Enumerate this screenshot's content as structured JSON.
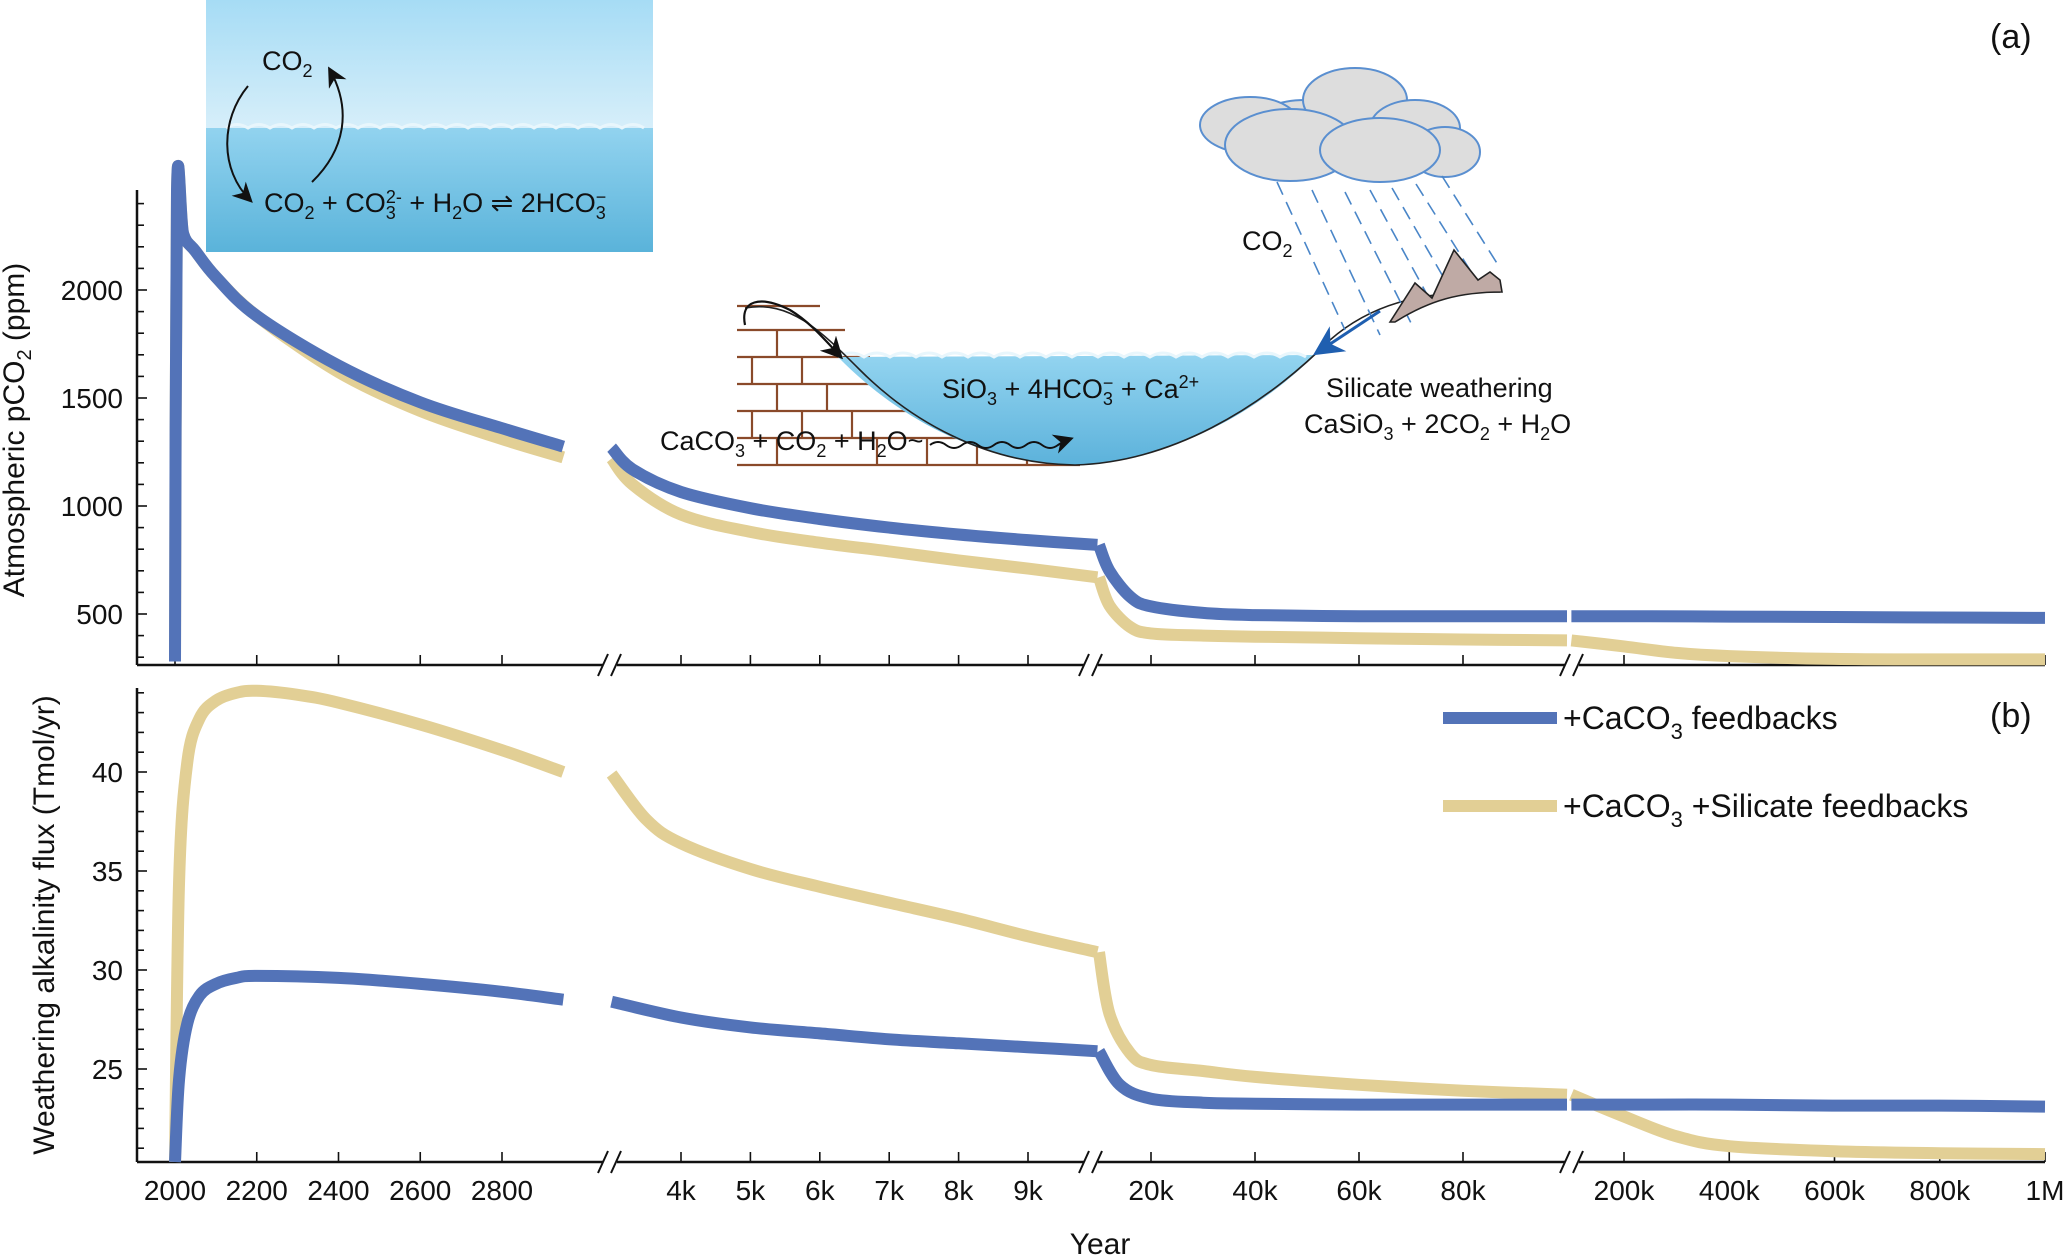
{
  "chart_data": [
    {
      "panel": "(a)",
      "type": "line",
      "ylabel": "Atmospheric pCO2 (ppm)",
      "ylabel_main": "Atmospheric pCO",
      "ylabel_sub": "2",
      "ylabel_tail": " (ppm)",
      "ylim": [
        264,
        2460
      ],
      "yticks": [
        500,
        1000,
        1500,
        2000
      ],
      "yminor_step": 100,
      "xlabel": "Year",
      "series": [
        {
          "name": "+CaCO3 feedbacks",
          "color": "#5373b8",
          "segments": [
            {
              "x": [
                2000,
                2005,
                2020,
                2050,
                2100,
                2200,
                2400,
                2600,
                2800,
                2950
              ],
              "y": [
                280,
                2460,
                2260,
                2180,
                2060,
                1880,
                1650,
                1480,
                1360,
                1275
              ]
            },
            {
              "x": [
                3000,
                3300,
                4000,
                5000,
                6000,
                7000,
                8000,
                9000,
                10000
              ],
              "y": [
                1270,
                1170,
                1065,
                990,
                940,
                900,
                868,
                842,
                820
              ]
            },
            {
              "x": [
                10000,
                12000,
                16000,
                20000,
                30000,
                40000,
                60000,
                80000,
                100000
              ],
              "y": [
                820,
                700,
                580,
                535,
                505,
                495,
                490,
                490,
                490
              ]
            },
            {
              "x": [
                100000,
                200000,
                400000,
                600000,
                800000,
                1000000
              ],
              "y": [
                490,
                490,
                488,
                486,
                484,
                482
              ]
            }
          ]
        },
        {
          "name": "+CaCO3 +Silicate feedbacks",
          "color": "#e2cf95",
          "segments": [
            {
              "x": [
                2000,
                2005,
                2020,
                2050,
                2100,
                2200,
                2400,
                2600,
                2800,
                2950
              ],
              "y": [
                280,
                2460,
                2260,
                2180,
                2060,
                1880,
                1620,
                1440,
                1310,
                1225
              ]
            },
            {
              "x": [
                3000,
                3300,
                4000,
                5000,
                6000,
                7000,
                8000,
                9000,
                10000
              ],
              "y": [
                1220,
                1100,
                960,
                880,
                830,
                790,
                748,
                710,
                670
              ]
            },
            {
              "x": [
                10000,
                12000,
                16000,
                20000,
                30000,
                40000,
                60000,
                80000,
                100000
              ],
              "y": [
                670,
                540,
                440,
                410,
                400,
                395,
                388,
                382,
                378
              ]
            },
            {
              "x": [
                100000,
                200000,
                300000,
                400000,
                600000,
                800000,
                1000000
              ],
              "y": [
                378,
                350,
                320,
                305,
                292,
                290,
                290
              ]
            }
          ]
        }
      ]
    },
    {
      "panel": "(b)",
      "type": "line",
      "ylabel": "Weathering alkalinity flux (Tmol/yr)",
      "ylim": [
        20.3,
        44.2
      ],
      "yticks": [
        25,
        30,
        35,
        40
      ],
      "yminor_step": 1,
      "xlabel": "Year",
      "x_axis_breaks": [
        "3000-4000",
        "10k-20k",
        "100k-200k"
      ],
      "xticks": [
        "2000",
        "2200",
        "2400",
        "2600",
        "2800",
        "4k",
        "5k",
        "6k",
        "7k",
        "8k",
        "9k",
        "20k",
        "40k",
        "60k",
        "80k",
        "200k",
        "400k",
        "600k",
        "800k",
        "1M"
      ],
      "series": [
        {
          "name": "+CaCO3 feedbacks",
          "color": "#5373b8",
          "segments": [
            {
              "x": [
                2000,
                2010,
                2030,
                2060,
                2100,
                2150,
                2200,
                2400,
                2600,
                2800,
                2950
              ],
              "y": [
                20.3,
                24.5,
                27.3,
                28.7,
                29.3,
                29.6,
                29.7,
                29.6,
                29.3,
                28.9,
                28.5
              ]
            },
            {
              "x": [
                3000,
                4000,
                5000,
                6000,
                7000,
                8000,
                9000,
                10000
              ],
              "y": [
                28.4,
                27.6,
                27.1,
                26.8,
                26.5,
                26.3,
                26.1,
                25.9
              ]
            },
            {
              "x": [
                10000,
                14000,
                20000,
                30000,
                40000,
                60000,
                80000,
                100000
              ],
              "y": [
                25.9,
                24.2,
                23.5,
                23.3,
                23.25,
                23.2,
                23.2,
                23.2
              ]
            },
            {
              "x": [
                100000,
                200000,
                400000,
                600000,
                800000,
                1000000
              ],
              "y": [
                23.2,
                23.2,
                23.2,
                23.15,
                23.15,
                23.1
              ]
            }
          ]
        },
        {
          "name": "+CaCO3 +Silicate feedbacks",
          "color": "#e2cf95",
          "segments": [
            {
              "x": [
                2000,
                2010,
                2030,
                2060,
                2100,
                2150,
                2200,
                2300,
                2400,
                2600,
                2800,
                2950
              ],
              "y": [
                20.3,
                34.5,
                40.5,
                42.7,
                43.6,
                44.0,
                44.1,
                43.9,
                43.5,
                42.4,
                41.1,
                40.0
              ]
            },
            {
              "x": [
                3000,
                3500,
                4000,
                5000,
                6000,
                7000,
                8000,
                9000,
                10000
              ],
              "y": [
                39.9,
                37.6,
                36.4,
                35.1,
                34.2,
                33.4,
                32.6,
                31.7,
                30.9
              ]
            },
            {
              "x": [
                10000,
                12000,
                16000,
                20000,
                30000,
                40000,
                60000,
                80000,
                100000
              ],
              "y": [
                30.9,
                27.8,
                25.8,
                25.2,
                24.9,
                24.6,
                24.2,
                23.9,
                23.7
              ]
            },
            {
              "x": [
                100000,
                200000,
                300000,
                400000,
                600000,
                800000,
                1000000
              ],
              "y": [
                23.7,
                22.6,
                21.6,
                21.1,
                20.85,
                20.75,
                20.7
              ]
            }
          ]
        }
      ]
    }
  ],
  "labels": {
    "panel_a": "(a)",
    "panel_b": "(b)",
    "xlabel": "Year",
    "ylabel_a_main": "Atmospheric pCO",
    "ylabel_a_sub": "2",
    "ylabel_a_tail": " (ppm)",
    "ylabel_b": "Weathering alkalinity flux (Tmol/yr)"
  },
  "legend": [
    {
      "main": "+CaCO",
      "sub": "3",
      "tail": " feedbacks",
      "color": "#5373b8"
    },
    {
      "main": "+CaCO",
      "sub": "3",
      "tail": " +Silicate feedbacks",
      "color": "#e2cf95"
    }
  ],
  "insets": {
    "ocean": {
      "co2_label": "CO",
      "co2_sub": "2",
      "equation": "CO2 + CO3 2- + H2O ⇌ 2HCO3 -"
    },
    "carbonate": {
      "basin_equation": "SiO3 + 4HCO3- + Ca2+",
      "carbonate_equation": "CaCO3 + CO2 + H2O"
    },
    "silicate": {
      "co2_label": "CO",
      "co2_sub": "2",
      "title": "Silicate weathering",
      "equation": "CaSiO3 + 2CO2 + H2O"
    }
  }
}
